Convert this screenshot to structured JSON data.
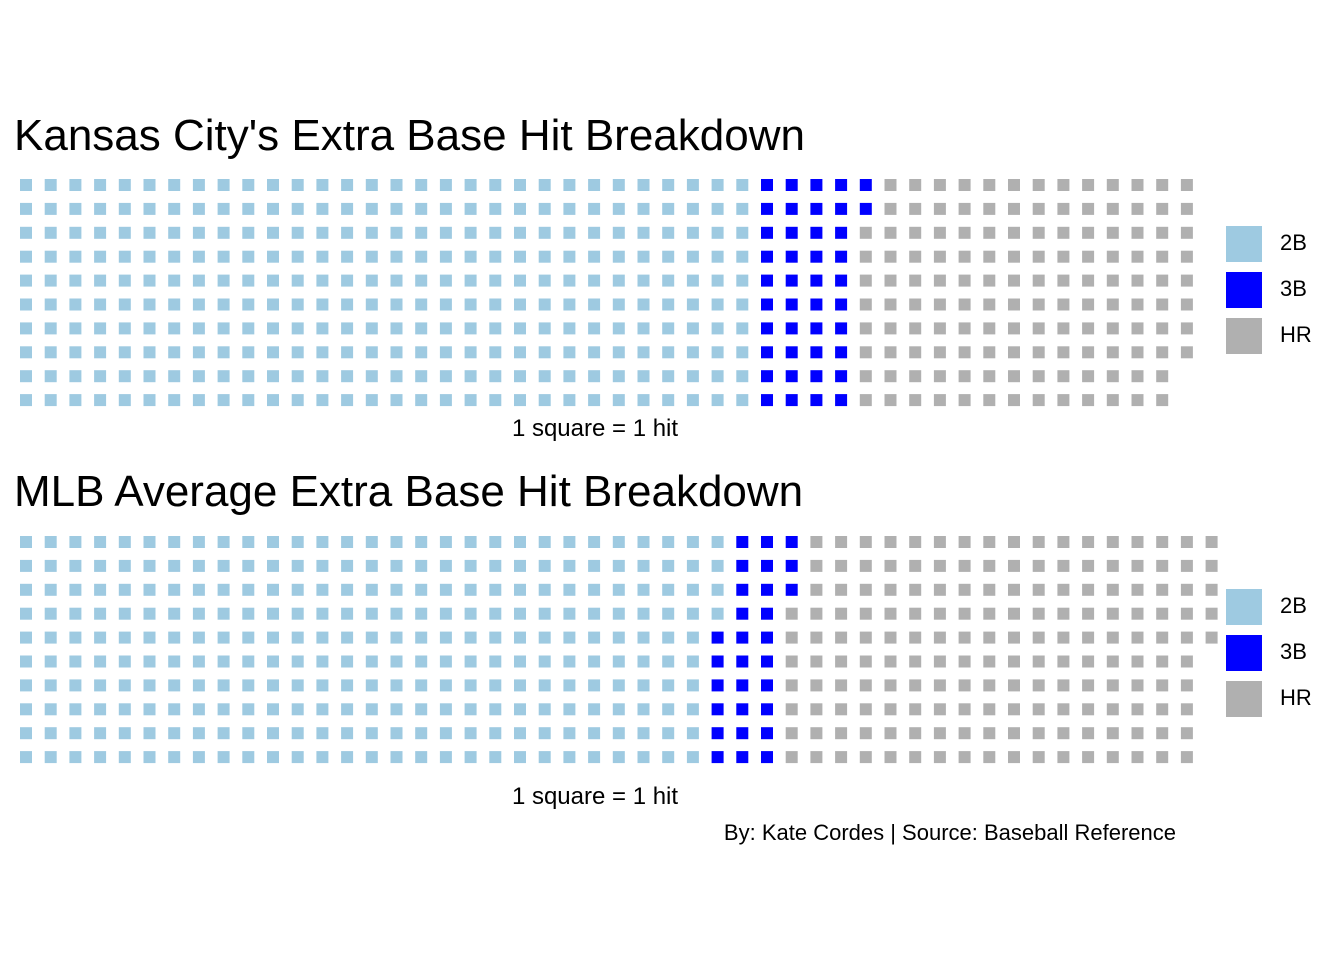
{
  "colors": {
    "2B": "#9ecae1",
    "3B": "#0000ff",
    "HR": "#b0b0b0"
  },
  "legend": {
    "labels": [
      "2B",
      "3B",
      "HR"
    ]
  },
  "caption": "1 square = 1 hit",
  "credit": "By: Kate Cordes | Source: Baseball Reference",
  "chart_data": [
    {
      "type": "waffle",
      "title": "Kansas City's Extra Base Hit Breakdown",
      "rows": 10,
      "fill_order": "column-major",
      "categories": [
        "2B",
        "3B",
        "HR"
      ],
      "values": [
        300,
        42,
        136
      ],
      "unit_label": "1 square = 1 hit"
    },
    {
      "type": "waffle",
      "title": "MLB Average Extra Base Hit Breakdown",
      "rows": 10,
      "fill_order": "column-major",
      "categories": [
        "2B",
        "3B",
        "HR"
      ],
      "values": [
        284,
        29,
        172
      ],
      "unit_label": "1 square = 1 hit"
    }
  ]
}
